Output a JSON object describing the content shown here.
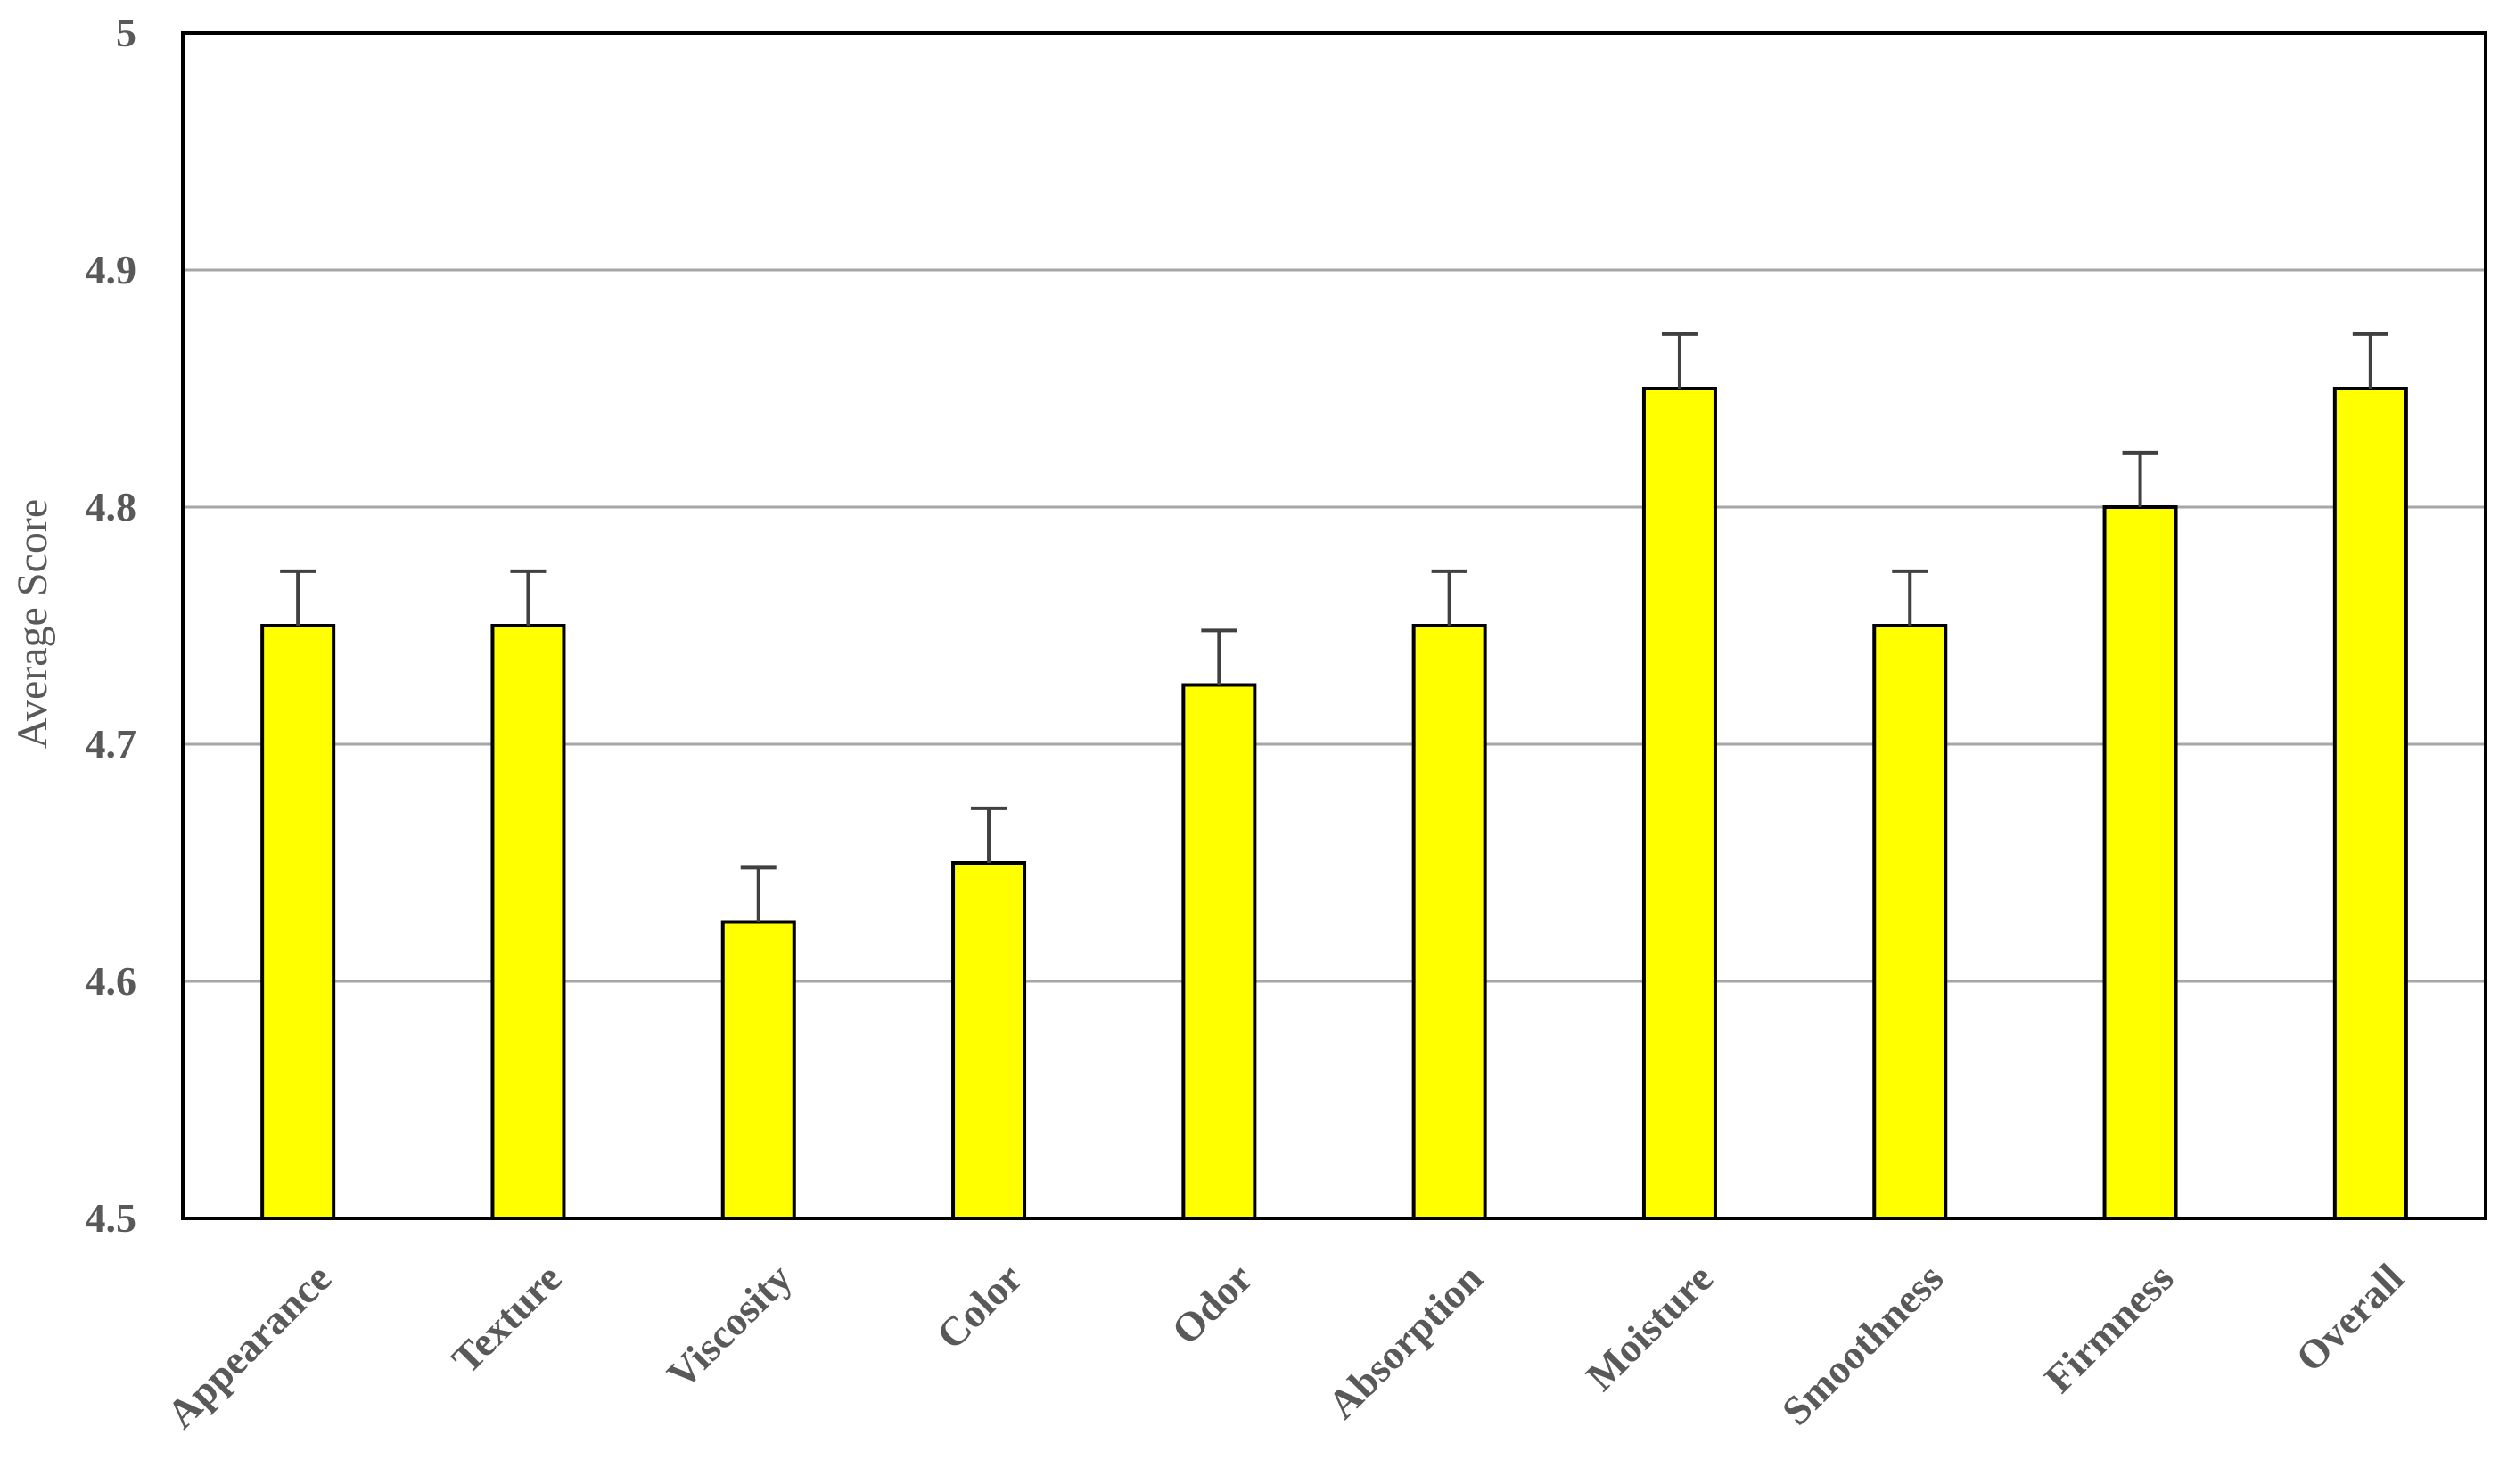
{
  "chart_data": {
    "type": "bar",
    "title": "",
    "xlabel": "",
    "ylabel": "Average Score",
    "ylim": [
      4.5,
      5.0
    ],
    "yticks": [
      4.5,
      4.6,
      4.7,
      4.8,
      4.9,
      5.0
    ],
    "ytick_labels": [
      "4.5",
      "4.6",
      "4.7",
      "4.8",
      "4.9",
      "5"
    ],
    "categories": [
      "Appearance",
      "Texture",
      "Viscosity",
      "Color",
      "Odor",
      "Absorption",
      "Moisture",
      "Smoothness",
      "Firmness",
      "Overall"
    ],
    "values": [
      4.75,
      4.75,
      4.625,
      4.65,
      4.725,
      4.75,
      4.85,
      4.75,
      4.8,
      4.85
    ],
    "error_plus": [
      0.023,
      0.023,
      0.023,
      0.023,
      0.023,
      0.023,
      0.023,
      0.023,
      0.023,
      0.023
    ],
    "grid": true,
    "legend": "none",
    "colors": {
      "bar_fill": "#FFFF00",
      "bar_stroke": "#000000",
      "grid": "#A6A6A6",
      "error_bar": "#404040",
      "text": "#595959"
    }
  }
}
